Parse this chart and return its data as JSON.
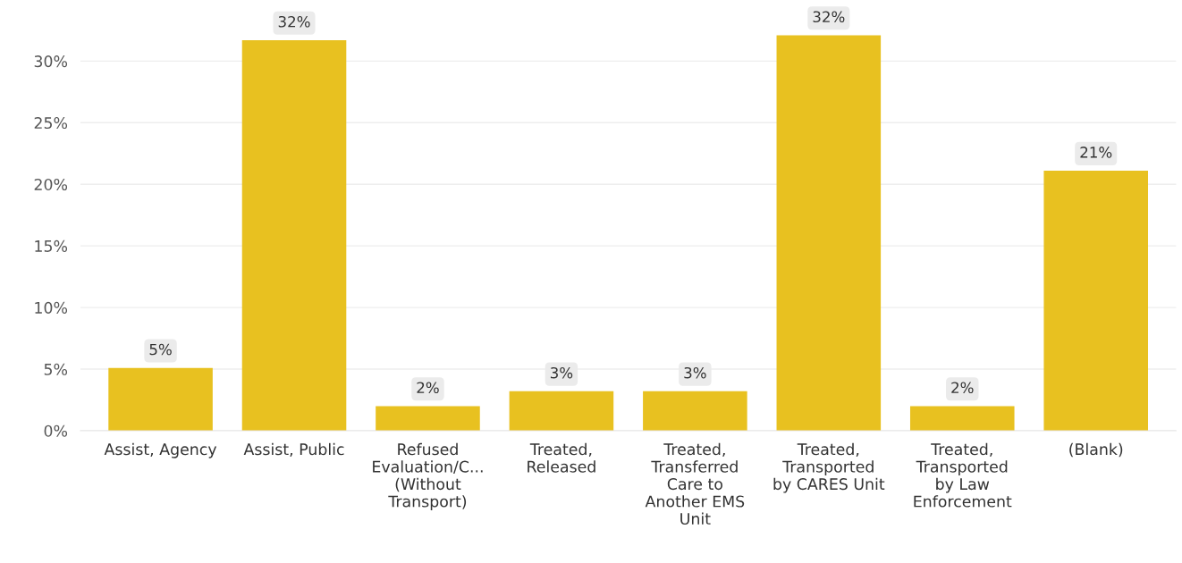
{
  "chart_data": {
    "type": "bar",
    "categories": [
      "Assist, Agency",
      "Assist, Public",
      "Refused\nEvaluation/C...\n(Without\nTransport)",
      "Treated,\nReleased",
      "Treated,\nTransferred\nCare to\nAnother EMS\nUnit",
      "Treated,\nTransported\nby CARES Unit",
      "Treated,\nTransported\nby Law\nEnforcement",
      "(Blank)"
    ],
    "values": [
      5.1,
      31.7,
      2.0,
      3.2,
      3.2,
      32.1,
      2.0,
      21.1
    ],
    "value_labels": [
      "5%",
      "32%",
      "2%",
      "3%",
      "3%",
      "32%",
      "2%",
      "21%"
    ],
    "color": "#e8c120",
    "ylim": [
      0,
      34.5
    ],
    "yticks": [
      {
        "value": 0,
        "label": "0%"
      },
      {
        "value": 5,
        "label": "5%"
      },
      {
        "value": 10,
        "label": "10%"
      },
      {
        "value": 15,
        "label": "15%"
      },
      {
        "value": 20,
        "label": "20%"
      },
      {
        "value": 25,
        "label": "25%"
      },
      {
        "value": 30,
        "label": "30%"
      }
    ],
    "grid": "y"
  }
}
